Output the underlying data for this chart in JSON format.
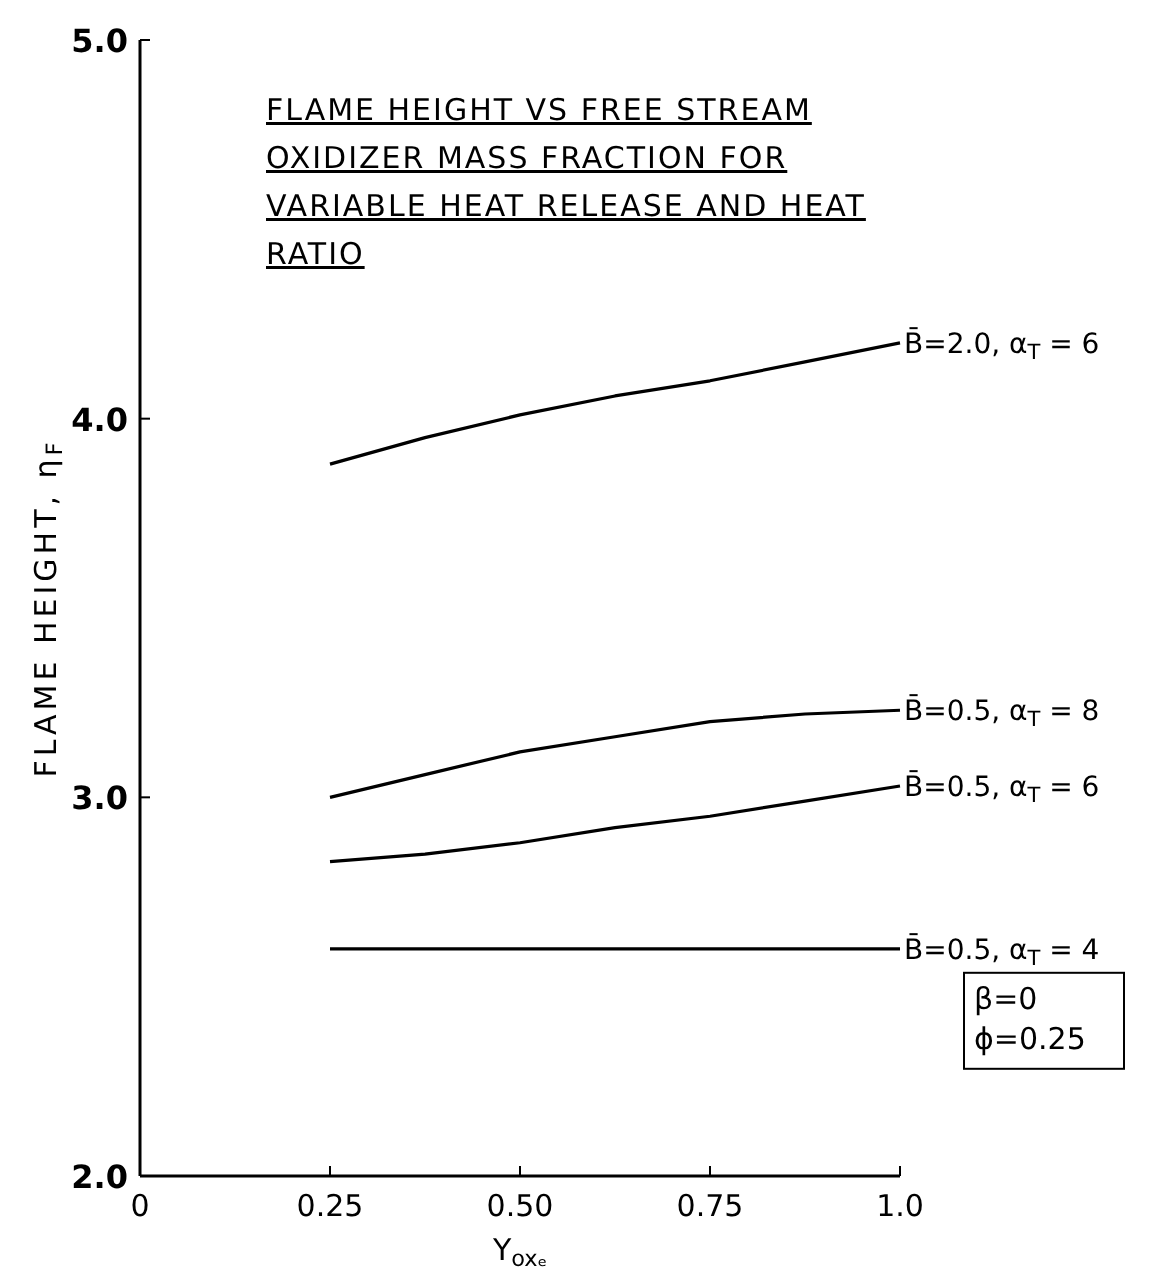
{
  "chart_data": {
    "type": "line",
    "title": "FLAME HEIGHT VS  FREE STREAM OXIDIZER MASS FRACTION FOR VARIABLE HEAT RELEASE AND HEAT RATIO",
    "xlabel": "Y$_{oxₑ}$",
    "ylabel": "FLAME HEIGHT, η$_{F}$",
    "x": [
      0.25,
      0.375,
      0.5,
      0.625,
      0.75,
      0.875,
      1.0
    ],
    "series": [
      {
        "name": "B̄=2.0, α$_{T}$ = 6",
        "color": "#000000",
        "values": [
          3.88,
          3.95,
          4.01,
          4.06,
          4.1,
          4.15,
          4.2
        ]
      },
      {
        "name": "B̄=0.5, α$_{T}$ = 8",
        "color": "#000000",
        "values": [
          3.0,
          3.06,
          3.12,
          3.16,
          3.2,
          3.22,
          3.23
        ]
      },
      {
        "name": "B̄=0.5, α$_{T}$ = 6",
        "color": "#000000",
        "values": [
          2.83,
          2.85,
          2.88,
          2.92,
          2.95,
          2.99,
          3.03
        ]
      },
      {
        "name": "B̄=0.5, α$_{T}$ = 4",
        "color": "#000000",
        "values": [
          2.6,
          2.6,
          2.6,
          2.6,
          2.6,
          2.6,
          2.6
        ]
      }
    ],
    "xlim": [
      0,
      1.0
    ],
    "xticks": [
      {
        "value": 0,
        "label": "0"
      },
      0.25,
      {
        "value": 0.5,
        "label": "0.50"
      },
      0.75,
      {
        "value": 1.0,
        "label": "1.0"
      }
    ],
    "ylim": [
      2.0,
      5.0
    ],
    "yticks": [
      {
        "value": 2,
        "label": "2.0"
      },
      {
        "value": 3,
        "label": "3.0"
      },
      {
        "value": 4,
        "label": "4.0"
      },
      {
        "value": 5,
        "label": "5.0"
      }
    ],
    "annotations": [
      "β=0",
      "ϕ=0.25"
    ],
    "grid": false
  }
}
